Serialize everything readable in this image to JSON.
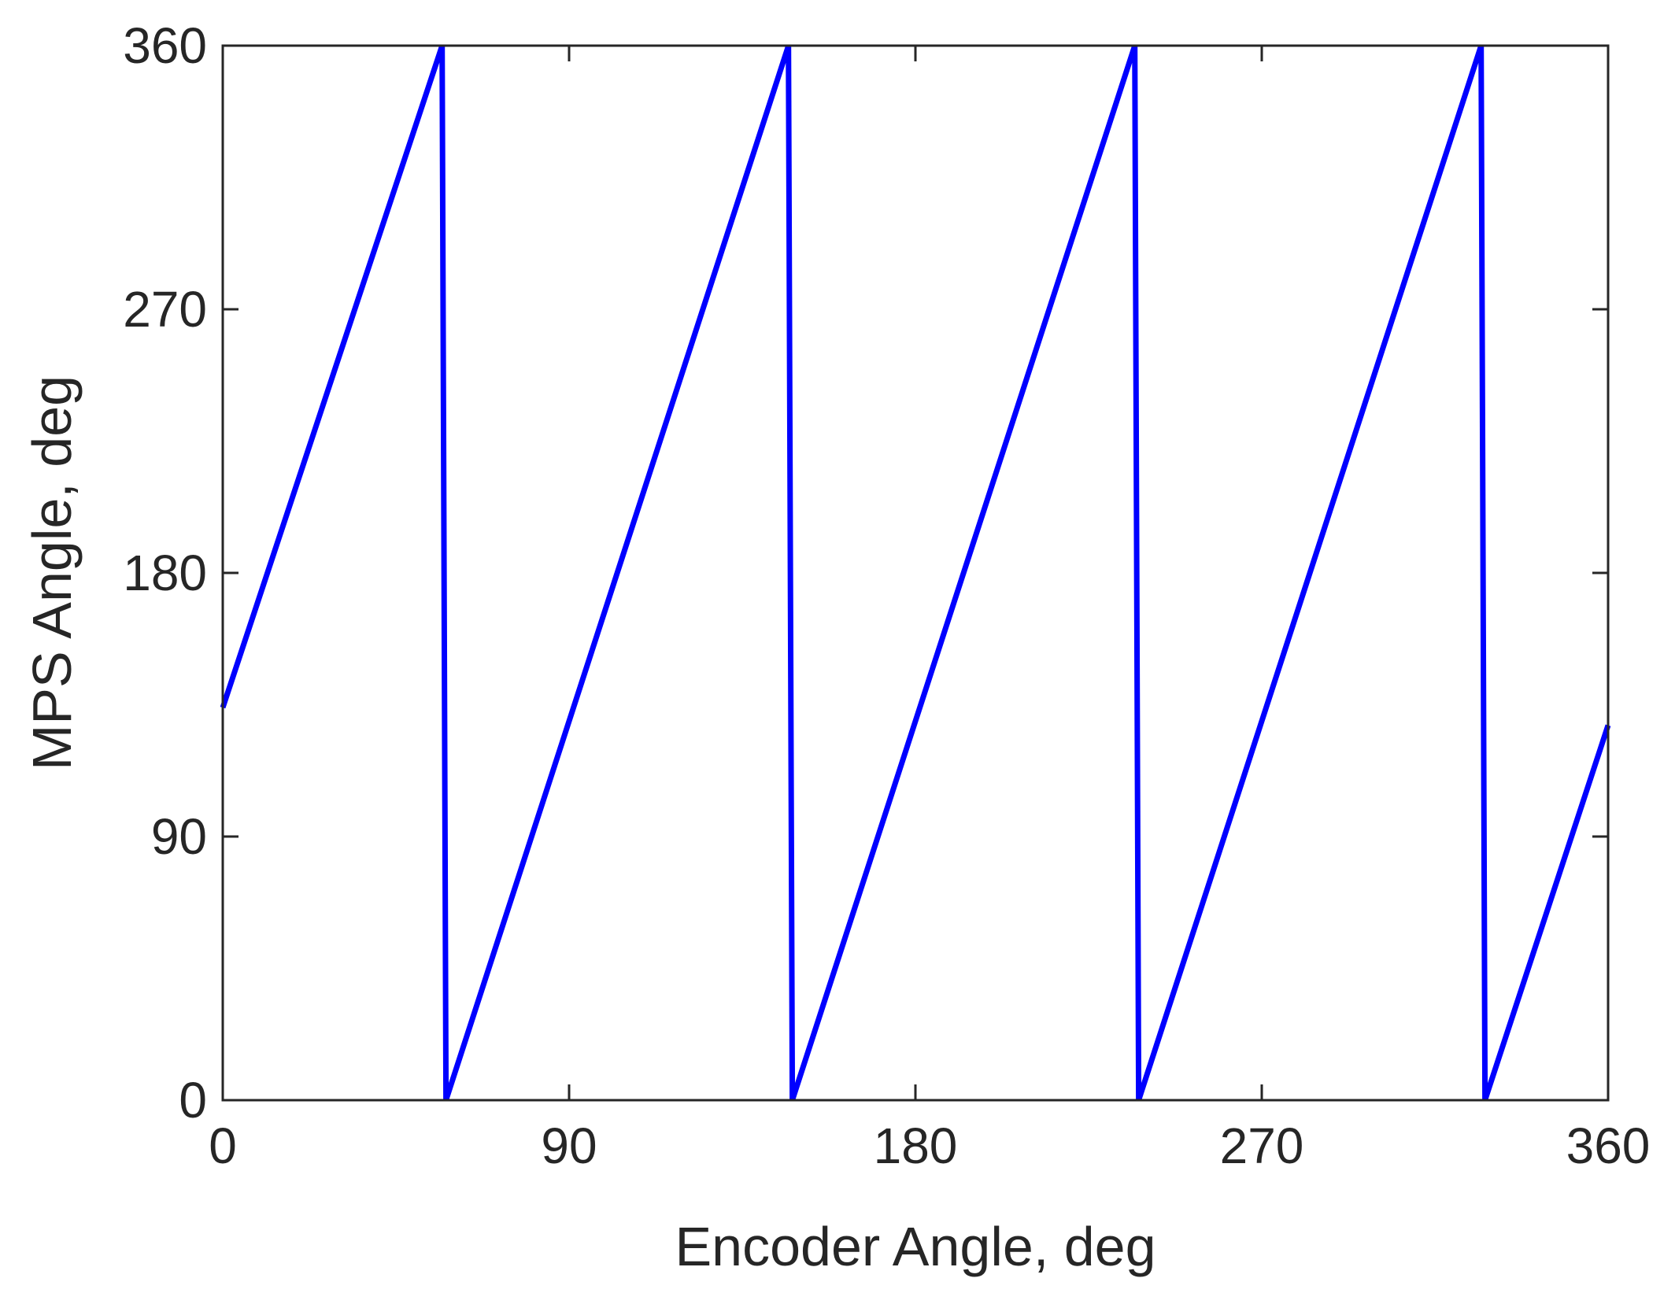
{
  "chart_data": {
    "type": "line",
    "title": "",
    "xlabel": "Encoder Angle, deg",
    "ylabel": "MPS Angle, deg",
    "xlim": [
      0,
      360
    ],
    "ylim": [
      0,
      360
    ],
    "xticks": [
      0,
      90,
      180,
      270,
      360
    ],
    "yticks": [
      0,
      90,
      180,
      270,
      360
    ],
    "xtick_labels": [
      "0",
      "90",
      "180",
      "270",
      "360"
    ],
    "ytick_labels": [
      "0",
      "90",
      "180",
      "270",
      "360"
    ],
    "grid": false,
    "legend": "none",
    "series": [
      {
        "color": "#0000ff",
        "x": [
          0,
          57,
          58,
          147,
          148,
          237,
          238,
          327,
          328,
          360
        ],
        "y": [
          134,
          360,
          0,
          360,
          0,
          360,
          0,
          360,
          0,
          128
        ]
      }
    ]
  }
}
